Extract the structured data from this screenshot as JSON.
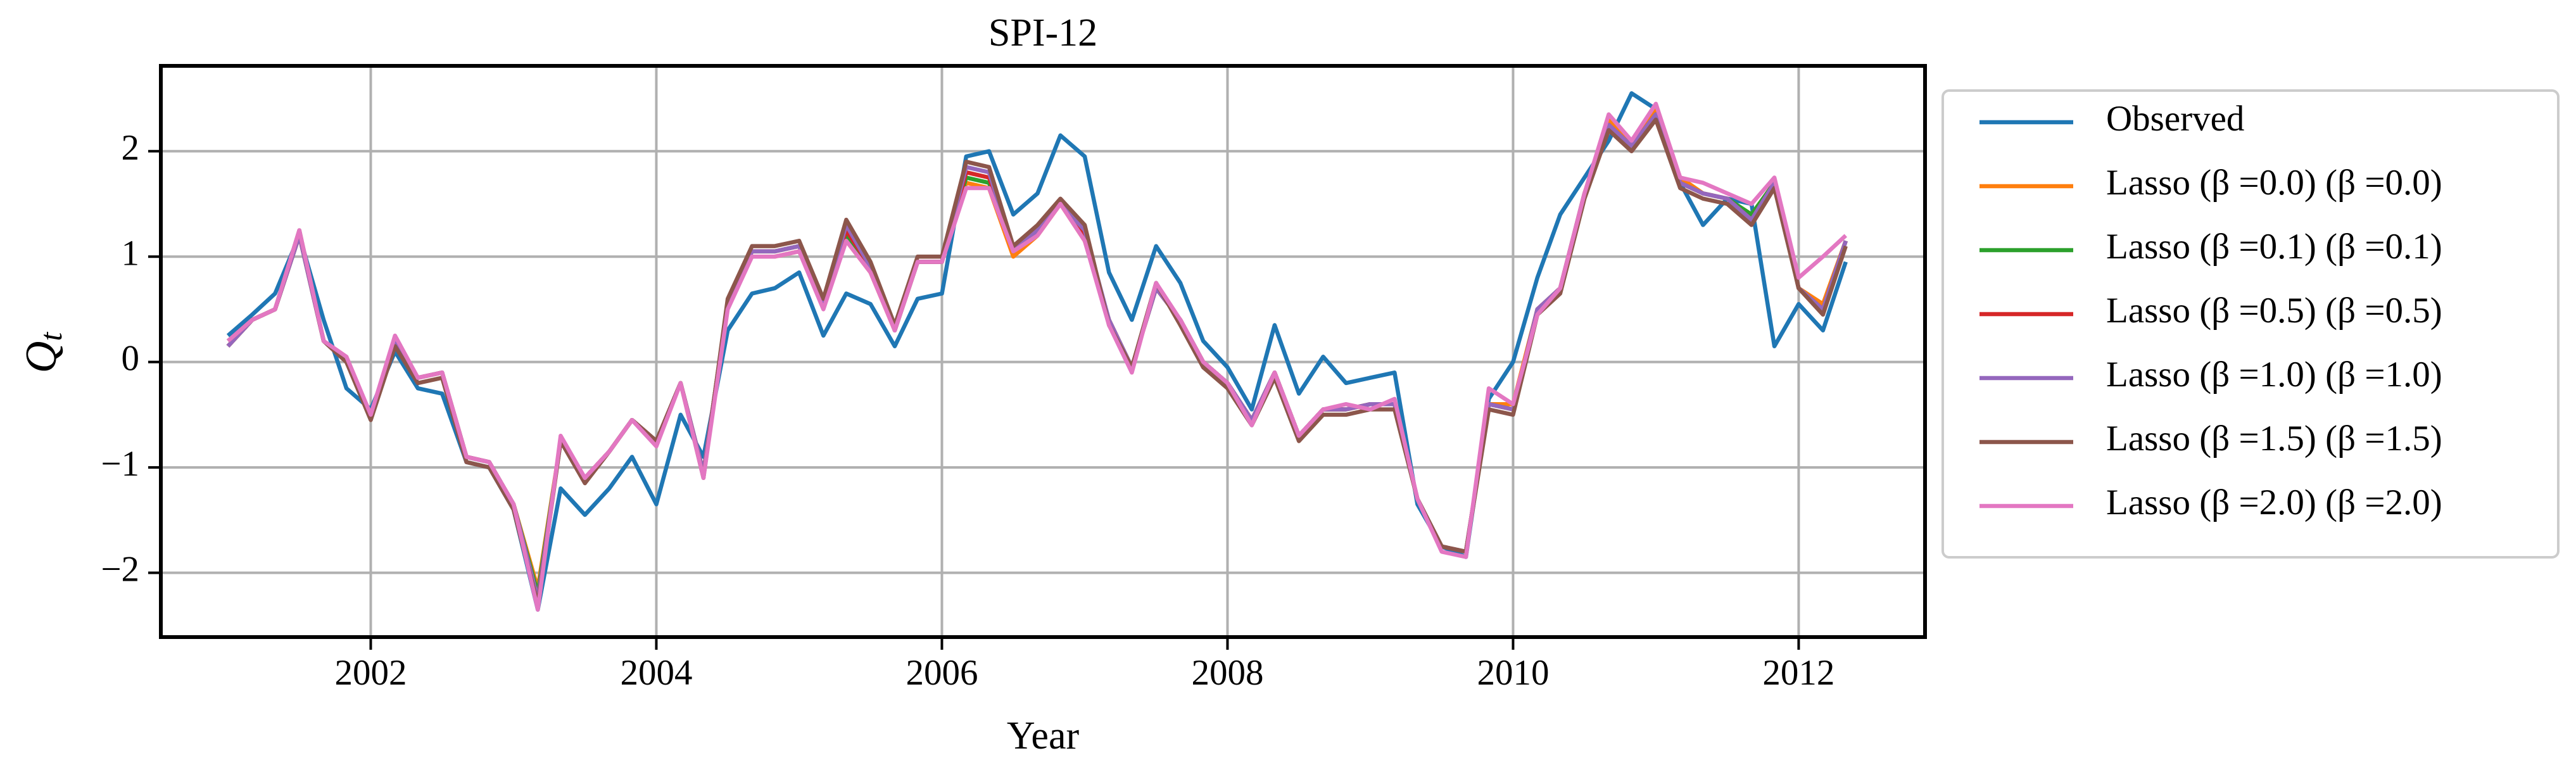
{
  "chart_data": {
    "type": "line",
    "title": "SPI-12",
    "xlabel": "Year",
    "ylabel": [
      "Q",
      "t"
    ],
    "x": [
      2001,
      2001.17,
      2001.33,
      2001.5,
      2001.67,
      2001.83,
      2002,
      2002.17,
      2002.33,
      2002.5,
      2002.67,
      2002.83,
      2003,
      2003.17,
      2003.33,
      2003.5,
      2003.67,
      2003.83,
      2004,
      2004.17,
      2004.33,
      2004.5,
      2004.67,
      2004.83,
      2005,
      2005.17,
      2005.33,
      2005.5,
      2005.67,
      2005.83,
      2006,
      2006.17,
      2006.33,
      2006.5,
      2006.67,
      2006.83,
      2007,
      2007.17,
      2007.33,
      2007.5,
      2007.67,
      2007.83,
      2008,
      2008.17,
      2008.33,
      2008.5,
      2008.67,
      2008.83,
      2009,
      2009.17,
      2009.33,
      2009.5,
      2009.67,
      2009.83,
      2010,
      2010.17,
      2010.33,
      2010.5,
      2010.67,
      2010.83,
      2011,
      2011.17,
      2011.33,
      2011.5,
      2011.67,
      2011.83,
      2012,
      2012.17,
      2012.33
    ],
    "series": [
      {
        "name": "Observed",
        "color": "#1f77b4",
        "values": [
          0.25,
          0.45,
          0.65,
          1.2,
          0.4,
          -0.25,
          -0.45,
          0.1,
          -0.25,
          -0.3,
          -0.95,
          -1.0,
          -1.4,
          -2.35,
          -1.2,
          -1.45,
          -1.2,
          -0.9,
          -1.35,
          -0.5,
          -0.9,
          0.3,
          0.65,
          0.7,
          0.85,
          0.25,
          0.65,
          0.55,
          0.15,
          0.6,
          0.65,
          1.95,
          2.0,
          1.4,
          1.6,
          2.15,
          1.95,
          0.85,
          0.4,
          1.1,
          0.75,
          0.2,
          -0.05,
          -0.45,
          0.35,
          -0.3,
          0.05,
          -0.2,
          -0.15,
          -0.1,
          -1.35,
          -1.75,
          -1.85,
          -0.35,
          0.0,
          0.8,
          1.4,
          1.75,
          2.1,
          2.55,
          2.4,
          1.7,
          1.3,
          1.55,
          1.5,
          0.15,
          0.55,
          0.3,
          0.95
        ]
      },
      {
        "name": "Lasso (β =0.0) (β =0.0)",
        "color": "#ff7f0e",
        "values": [
          0.15,
          0.4,
          0.5,
          1.2,
          0.2,
          0.0,
          -0.5,
          0.2,
          -0.15,
          -0.1,
          -0.9,
          -0.95,
          -1.35,
          -2.15,
          -0.75,
          -1.1,
          -0.85,
          -0.55,
          -0.75,
          -0.2,
          -1.05,
          0.55,
          1.0,
          1.0,
          1.05,
          0.55,
          1.15,
          0.85,
          0.3,
          0.95,
          0.95,
          1.7,
          1.65,
          1.0,
          1.2,
          1.5,
          1.15,
          0.4,
          -0.05,
          0.7,
          0.4,
          0.0,
          -0.2,
          -0.55,
          -0.1,
          -0.7,
          -0.45,
          -0.45,
          -0.4,
          -0.4,
          -1.3,
          -1.75,
          -1.8,
          -0.4,
          -0.4,
          0.5,
          0.7,
          1.6,
          2.3,
          2.05,
          2.4,
          1.75,
          1.6,
          1.55,
          1.4,
          1.7,
          0.7,
          0.55,
          1.15
        ]
      },
      {
        "name": "Lasso (β =0.1) (β =0.1)",
        "color": "#2ca02c",
        "values": [
          0.15,
          0.4,
          0.5,
          1.2,
          0.2,
          0.0,
          -0.5,
          0.2,
          -0.15,
          -0.1,
          -0.9,
          -0.95,
          -1.35,
          -2.2,
          -0.75,
          -1.1,
          -0.85,
          -0.55,
          -0.75,
          -0.2,
          -1.05,
          0.55,
          1.05,
          1.05,
          1.1,
          0.55,
          1.2,
          0.9,
          0.3,
          0.95,
          0.95,
          1.75,
          1.7,
          1.05,
          1.25,
          1.5,
          1.2,
          0.4,
          -0.05,
          0.7,
          0.4,
          0.0,
          -0.2,
          -0.55,
          -0.1,
          -0.7,
          -0.45,
          -0.45,
          -0.4,
          -0.4,
          -1.3,
          -1.75,
          -1.8,
          -0.4,
          -0.45,
          0.5,
          0.7,
          1.6,
          2.25,
          2.05,
          2.35,
          1.7,
          1.6,
          1.55,
          1.4,
          1.7,
          0.7,
          0.5,
          1.15
        ]
      },
      {
        "name": "Lasso (β =0.5) (β =0.5)",
        "color": "#d62728",
        "values": [
          0.15,
          0.4,
          0.5,
          1.2,
          0.2,
          0.0,
          -0.5,
          0.2,
          -0.15,
          -0.1,
          -0.9,
          -0.95,
          -1.35,
          -2.25,
          -0.75,
          -1.1,
          -0.85,
          -0.55,
          -0.75,
          -0.2,
          -1.05,
          0.55,
          1.05,
          1.05,
          1.1,
          0.55,
          1.25,
          0.9,
          0.3,
          0.95,
          0.95,
          1.8,
          1.75,
          1.05,
          1.25,
          1.5,
          1.2,
          0.4,
          -0.05,
          0.7,
          0.4,
          0.0,
          -0.2,
          -0.55,
          -0.1,
          -0.7,
          -0.45,
          -0.45,
          -0.4,
          -0.4,
          -1.3,
          -1.75,
          -1.8,
          -0.4,
          -0.45,
          0.5,
          0.7,
          1.6,
          2.25,
          2.05,
          2.35,
          1.7,
          1.6,
          1.55,
          1.35,
          1.7,
          0.7,
          0.5,
          1.15
        ]
      },
      {
        "name": "Lasso (β =1.0) (β =1.0)",
        "color": "#9467bd",
        "values": [
          0.15,
          0.4,
          0.5,
          1.2,
          0.2,
          0.0,
          -0.5,
          0.2,
          -0.15,
          -0.1,
          -0.9,
          -0.95,
          -1.35,
          -2.25,
          -0.75,
          -1.1,
          -0.85,
          -0.55,
          -0.75,
          -0.2,
          -1.05,
          0.55,
          1.05,
          1.05,
          1.1,
          0.55,
          1.3,
          0.9,
          0.3,
          0.95,
          0.95,
          1.85,
          1.8,
          1.05,
          1.25,
          1.5,
          1.25,
          0.4,
          -0.05,
          0.7,
          0.4,
          0.0,
          -0.2,
          -0.55,
          -0.1,
          -0.7,
          -0.45,
          -0.45,
          -0.4,
          -0.4,
          -1.3,
          -1.75,
          -1.8,
          -0.4,
          -0.45,
          0.5,
          0.7,
          1.6,
          2.25,
          2.05,
          2.35,
          1.7,
          1.6,
          1.55,
          1.35,
          1.7,
          0.7,
          0.5,
          1.15
        ]
      },
      {
        "name": "Lasso (β =1.5) (β =1.5)",
        "color": "#8c564b",
        "values": [
          0.2,
          0.4,
          0.5,
          1.25,
          0.2,
          0.0,
          -0.55,
          0.15,
          -0.2,
          -0.15,
          -0.95,
          -1.0,
          -1.4,
          -2.3,
          -0.75,
          -1.15,
          -0.85,
          -0.55,
          -0.75,
          -0.2,
          -1.1,
          0.6,
          1.1,
          1.1,
          1.15,
          0.6,
          1.35,
          0.95,
          0.35,
          1.0,
          1.0,
          1.9,
          1.85,
          1.1,
          1.3,
          1.55,
          1.3,
          0.35,
          -0.05,
          0.75,
          0.35,
          -0.05,
          -0.25,
          -0.6,
          -0.15,
          -0.75,
          -0.5,
          -0.5,
          -0.45,
          -0.45,
          -1.3,
          -1.75,
          -1.8,
          -0.45,
          -0.5,
          0.45,
          0.65,
          1.55,
          2.2,
          2.0,
          2.3,
          1.65,
          1.55,
          1.5,
          1.3,
          1.65,
          0.7,
          0.45,
          1.1
        ]
      },
      {
        "name": "Lasso (β =2.0) (β =2.0)",
        "color": "#e377c2",
        "values": [
          0.2,
          0.4,
          0.5,
          1.25,
          0.2,
          0.05,
          -0.5,
          0.25,
          -0.15,
          -0.1,
          -0.9,
          -0.95,
          -1.35,
          -2.35,
          -0.7,
          -1.1,
          -0.85,
          -0.55,
          -0.8,
          -0.2,
          -1.1,
          0.5,
          1.0,
          1.0,
          1.05,
          0.5,
          1.15,
          0.85,
          0.3,
          0.95,
          0.95,
          1.65,
          1.65,
          1.05,
          1.2,
          1.5,
          1.15,
          0.35,
          -0.1,
          0.75,
          0.4,
          0.0,
          -0.2,
          -0.6,
          -0.1,
          -0.7,
          -0.45,
          -0.4,
          -0.45,
          -0.35,
          -1.3,
          -1.8,
          -1.85,
          -0.25,
          -0.4,
          0.45,
          0.7,
          1.6,
          2.35,
          2.1,
          2.45,
          1.75,
          1.7,
          1.6,
          1.5,
          1.75,
          0.8,
          1.0,
          1.2
        ]
      }
    ],
    "xlim": [
      2000.53,
      2012.885
    ],
    "xticks": [
      2002,
      2004,
      2006,
      2008,
      2010,
      2012
    ],
    "ylim": [
      -2.61,
      2.81
    ],
    "yticks": [
      -2,
      -1,
      0,
      1,
      2
    ],
    "grid": true,
    "legend": "outside right"
  }
}
